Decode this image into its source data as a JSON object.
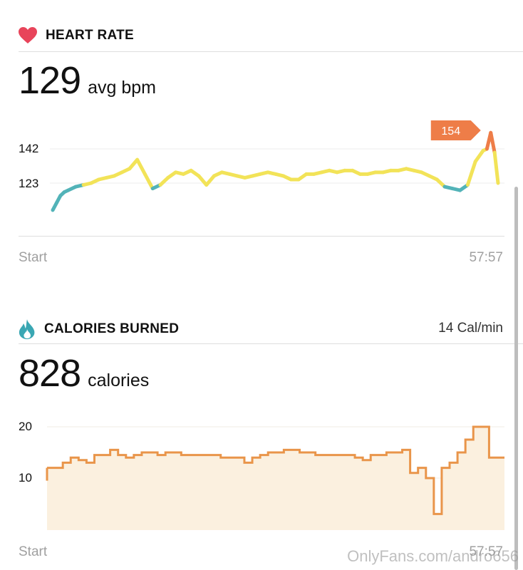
{
  "heart_rate": {
    "title": "HEART RATE",
    "value": "129",
    "unit": "avg bpm",
    "y_ticks": [
      "142",
      "123"
    ],
    "peak_label": "154",
    "x_start": "Start",
    "x_end": "57:57",
    "icon": "heart-icon"
  },
  "calories": {
    "title": "CALORIES BURNED",
    "rate": "14 Cal/min",
    "value": "828",
    "unit": "calories",
    "y_ticks": [
      "20",
      "10"
    ],
    "x_start": "Start",
    "x_end": "57:57",
    "icon": "flame-icon"
  },
  "watermark": "OnlyFans.com/andro656",
  "colors": {
    "heart": "#e8445a",
    "flame": "#3aa7b3",
    "zone_low": "#52b3b8",
    "zone_mid": "#f2e358",
    "zone_high": "#ee7d48",
    "calories_line": "#e9954a",
    "calories_fill": "#fbf0df"
  },
  "chart_data": [
    {
      "type": "line",
      "name": "heart_rate",
      "x_range_min": [
        0,
        57.95
      ],
      "y_ticks": [
        142,
        123
      ],
      "x": [
        0,
        0.5,
        1,
        1.5,
        2,
        3,
        4,
        5,
        6,
        7,
        8,
        9,
        10,
        11,
        12,
        13,
        14,
        15,
        16,
        17,
        18,
        19,
        20,
        21,
        22,
        23,
        24,
        25,
        26,
        27,
        28,
        29,
        30,
        31,
        32,
        33,
        34,
        35,
        36,
        37,
        38,
        39,
        40,
        41,
        42,
        43,
        44,
        45,
        46,
        47,
        48,
        49,
        50,
        51,
        52,
        53,
        54,
        55,
        56,
        56.5,
        57,
        57.5,
        57.95
      ],
      "y": [
        108,
        112,
        116,
        118,
        119,
        121,
        122,
        123,
        125,
        126,
        127,
        129,
        131,
        136,
        128,
        120,
        122,
        126,
        129,
        128,
        130,
        127,
        122,
        127,
        129,
        128,
        127,
        126,
        127,
        128,
        129,
        128,
        127,
        125,
        125,
        128,
        128,
        129,
        130,
        129,
        130,
        130,
        128,
        128,
        129,
        129,
        130,
        130,
        131,
        130,
        129,
        127,
        125,
        121,
        120,
        119,
        122,
        135,
        141,
        142,
        151,
        140,
        123
      ]
    },
    {
      "type": "area",
      "name": "calories",
      "x_range_min": [
        0,
        57.95
      ],
      "y_ticks": [
        20,
        10
      ],
      "x": [
        0,
        1,
        2,
        3,
        4,
        5,
        6,
        7,
        8,
        9,
        10,
        11,
        12,
        13,
        14,
        15,
        16,
        17,
        18,
        19,
        20,
        21,
        22,
        23,
        24,
        25,
        26,
        27,
        28,
        29,
        30,
        31,
        32,
        33,
        34,
        35,
        36,
        37,
        38,
        39,
        40,
        41,
        42,
        43,
        44,
        45,
        46,
        47,
        48,
        49,
        50,
        51,
        52,
        53,
        54,
        55,
        56,
        57
      ],
      "y": [
        12,
        12,
        13,
        14,
        13.5,
        13,
        14.5,
        14.5,
        15.5,
        14.5,
        14,
        14.5,
        15,
        15,
        14.5,
        15,
        15,
        14.5,
        14.5,
        14.5,
        14.5,
        14.5,
        14,
        14,
        14,
        13,
        14,
        14.5,
        15,
        15,
        15.5,
        15.5,
        15,
        15,
        14.5,
        14.5,
        14.5,
        14.5,
        14.5,
        14,
        13.5,
        14.5,
        14.5,
        15,
        15,
        15.5,
        11,
        12,
        10,
        3,
        12,
        13,
        15,
        17.5,
        20,
        20,
        14,
        14
      ]
    }
  ]
}
